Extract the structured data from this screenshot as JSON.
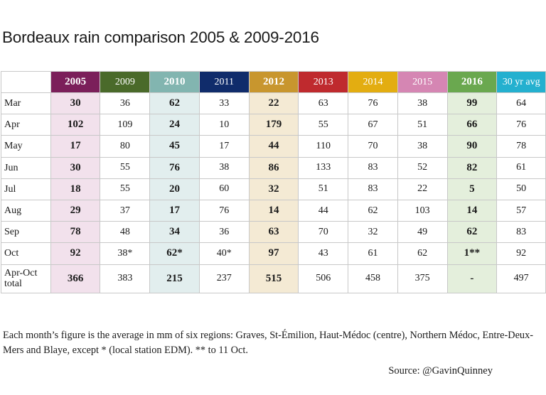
{
  "title": "Bordeaux rain comparison 2005 & 2009-2016",
  "columns": [
    {
      "label": "2005",
      "header_color": "#7b1f5a",
      "cell_color": "#f2e1ec",
      "bold": true
    },
    {
      "label": "2009",
      "header_color": "#4a6a2a",
      "cell_color": "#ffffff",
      "bold": false
    },
    {
      "label": "2010",
      "header_color": "#82b5b0",
      "cell_color": "#e2eeee",
      "bold": true
    },
    {
      "label": "2011",
      "header_color": "#102c6b",
      "cell_color": "#ffffff",
      "bold": false
    },
    {
      "label": "2012",
      "header_color": "#c8962e",
      "cell_color": "#f4ead4",
      "bold": true
    },
    {
      "label": "2013",
      "header_color": "#bf2a2e",
      "cell_color": "#ffffff",
      "bold": false
    },
    {
      "label": "2014",
      "header_color": "#e3ad11",
      "cell_color": "#ffffff",
      "bold": false
    },
    {
      "label": "2015",
      "header_color": "#d586b3",
      "cell_color": "#ffffff",
      "bold": false
    },
    {
      "label": "2016",
      "header_color": "#6aa84f",
      "cell_color": "#e4efdc",
      "bold": true
    },
    {
      "label": "30 yr avg",
      "header_color": "#24b0cf",
      "cell_color": "#ffffff",
      "bold": false
    }
  ],
  "rows": [
    {
      "label": "Mar",
      "values": [
        "30",
        "36",
        "62",
        "33",
        "22",
        "63",
        "76",
        "38",
        "99",
        "64"
      ]
    },
    {
      "label": "Apr",
      "values": [
        "102",
        "109",
        "24",
        "10",
        "179",
        "55",
        "67",
        "51",
        "66",
        "76"
      ]
    },
    {
      "label": "May",
      "values": [
        "17",
        "80",
        "45",
        "17",
        "44",
        "110",
        "70",
        "38",
        "90",
        "78"
      ]
    },
    {
      "label": "Jun",
      "values": [
        "30",
        "55",
        "76",
        "38",
        "86",
        "133",
        "83",
        "52",
        "82",
        "61"
      ]
    },
    {
      "label": "Jul",
      "values": [
        "18",
        "55",
        "20",
        "60",
        "32",
        "51",
        "83",
        "22",
        "5",
        "50"
      ]
    },
    {
      "label": "Aug",
      "values": [
        "29",
        "37",
        "17",
        "76",
        "14",
        "44",
        "62",
        "103",
        "14",
        "57"
      ]
    },
    {
      "label": "Sep",
      "values": [
        "78",
        "48",
        "34",
        "36",
        "63",
        "70",
        "32",
        "49",
        "62",
        "83"
      ]
    },
    {
      "label": "Oct",
      "values": [
        "92",
        "38*",
        "62*",
        "40*",
        "97",
        "43",
        "61",
        "62",
        "1**",
        "92"
      ]
    }
  ],
  "total_row": {
    "label_line1": "Apr-Oct",
    "label_line2": "total",
    "values": [
      "366",
      "383",
      "215",
      "237",
      "515",
      "506",
      "458",
      "375",
      "-",
      "497"
    ]
  },
  "note": "Each month’s figure is the average in mm of six regions: Graves, St-Émilion, Haut-Médoc (centre), Northern Médoc, Entre-Deux-Mers and Blaye, except * (local station EDM). ** to 11 Oct.",
  "source": "Source: @GavinQuinney"
}
